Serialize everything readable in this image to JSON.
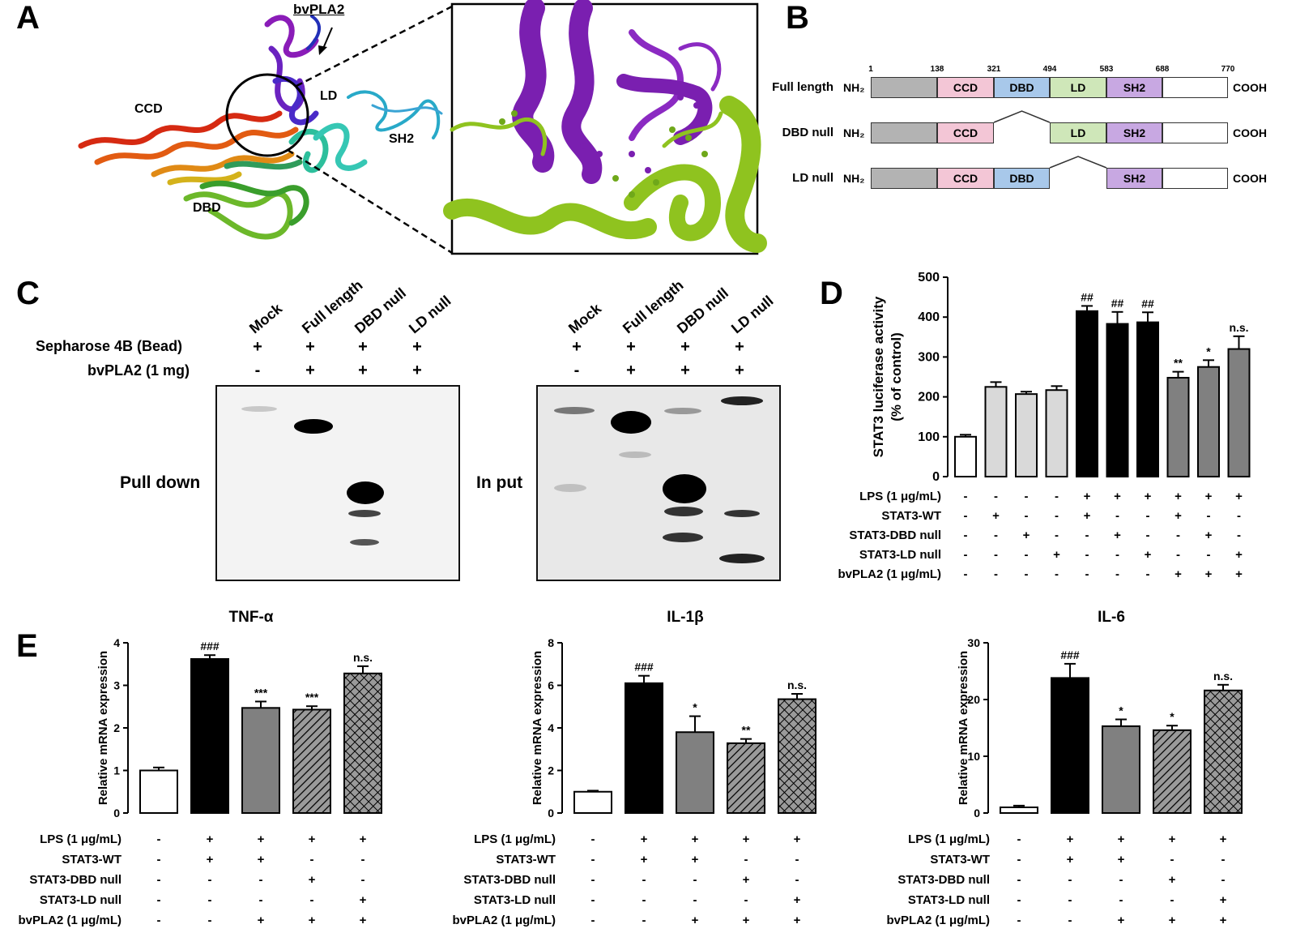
{
  "panels": {
    "a": "A",
    "b": "B",
    "c": "C",
    "d": "D",
    "e": "E"
  },
  "panel_a": {
    "labels": {
      "bvpla2": "bvPLA2",
      "ccd": "CCD",
      "ld": "LD",
      "sh2": "SH2",
      "dbd": "DBD"
    },
    "colors": {
      "helix_purple": "#7a1fb0",
      "helix_green": "#8fc31f",
      "background": "#ffffff"
    }
  },
  "panel_b": {
    "positions": [
      "1",
      "138",
      "321",
      "494",
      "583",
      "688",
      "770"
    ],
    "nh2": "NH₂",
    "cooh": "COOH",
    "constructs": [
      {
        "name": "Full length",
        "domains": [
          "CCD",
          "DBD",
          "LD",
          "SH2"
        ]
      },
      {
        "name": "DBD null",
        "domains": [
          "CCD",
          "LD",
          "SH2"
        ]
      },
      {
        "name": "LD null",
        "domains": [
          "CCD",
          "DBD",
          "SH2"
        ]
      }
    ],
    "domain_colors": {
      "N": "#b3b3b3",
      "CCD": "#f3c6d6",
      "DBD": "#a8c8ea",
      "LD": "#cfe7b9",
      "SH2": "#c8a8e2",
      "C": "#ffffff"
    }
  },
  "panel_c": {
    "lanes": [
      "Mock",
      "Full length",
      "DBD null",
      "LD null"
    ],
    "row_labels": {
      "bead": "Sepharose 4B (Bead)",
      "bvpla2": "bvPLA2 (1 mg)"
    },
    "bead_signs": [
      "+",
      "+",
      "+",
      "+"
    ],
    "bvpla2_signs": [
      "-",
      "+",
      "+",
      "+"
    ],
    "blot_labels": {
      "pulldown": "Pull down",
      "input": "In put"
    }
  },
  "panel_d": {
    "chart_data": {
      "type": "bar",
      "ylabel": "STAT3 luciferase activity\n(% of control)",
      "ylim": [
        0,
        500
      ],
      "yticks": [
        "0",
        "100",
        "200",
        "300",
        "400",
        "500"
      ],
      "values": [
        100,
        225,
        207,
        217,
        415,
        383,
        387,
        248,
        275,
        320
      ],
      "errors": [
        5,
        12,
        6,
        10,
        13,
        30,
        25,
        15,
        17,
        32
      ],
      "bar_colors": [
        "#ffffff",
        "#d9d9d9",
        "#d9d9d9",
        "#d9d9d9",
        "#000000",
        "#000000",
        "#000000",
        "#808080",
        "#808080",
        "#808080"
      ],
      "annotations": [
        "",
        "",
        "",
        "",
        "##",
        "##",
        "##",
        "**",
        "*",
        "n.s."
      ],
      "treatments": [
        {
          "name": "LPS (1 μg/mL)",
          "signs": [
            "-",
            "-",
            "-",
            "-",
            "+",
            "+",
            "+",
            "+",
            "+",
            "+"
          ]
        },
        {
          "name": "STAT3-WT",
          "signs": [
            "-",
            "+",
            "-",
            "-",
            "+",
            "-",
            "-",
            "+",
            "-",
            "-"
          ]
        },
        {
          "name": "STAT3-DBD null",
          "signs": [
            "-",
            "-",
            "+",
            "-",
            "-",
            "+",
            "-",
            "-",
            "+",
            "-"
          ]
        },
        {
          "name": "STAT3-LD null",
          "signs": [
            "-",
            "-",
            "-",
            "+",
            "-",
            "-",
            "+",
            "-",
            "-",
            "+"
          ]
        },
        {
          "name": "bvPLA2 (1 μg/mL)",
          "signs": [
            "-",
            "-",
            "-",
            "-",
            "-",
            "-",
            "-",
            "+",
            "+",
            "+"
          ]
        }
      ]
    }
  },
  "chart_data": [
    {
      "type": "bar",
      "title": "TNF-α",
      "ylabel": "Relative mRNA expression",
      "ylim": [
        0,
        4
      ],
      "yticks": [
        "0",
        "1",
        "2",
        "3",
        "4"
      ],
      "values": [
        1.0,
        3.62,
        2.47,
        2.43,
        3.28
      ],
      "errors": [
        0.07,
        0.09,
        0.15,
        0.08,
        0.17
      ],
      "annotations": [
        "",
        "###",
        "***",
        "***",
        "n.s."
      ]
    },
    {
      "type": "bar",
      "title": "IL-1β",
      "ylabel": "Relative mRNA expression",
      "ylim": [
        0,
        8
      ],
      "yticks": [
        "0",
        "2",
        "4",
        "6",
        "8"
      ],
      "values": [
        1.0,
        6.1,
        3.8,
        3.28,
        5.35
      ],
      "errors": [
        0.05,
        0.35,
        0.75,
        0.2,
        0.25
      ],
      "annotations": [
        "",
        "###",
        "*",
        "**",
        "n.s."
      ]
    },
    {
      "type": "bar",
      "title": "IL-6",
      "ylabel": "Relative mRNA expression",
      "ylim": [
        0,
        30
      ],
      "yticks": [
        "0",
        "10",
        "20",
        "30"
      ],
      "values": [
        1.0,
        23.8,
        15.3,
        14.6,
        21.6
      ],
      "errors": [
        0.3,
        2.5,
        1.2,
        0.8,
        1.0
      ],
      "annotations": [
        "",
        "###",
        "*",
        "*",
        "n.s."
      ]
    }
  ],
  "panel_e": {
    "bar_fills": [
      "white",
      "black",
      "gray",
      "hatch",
      "crosshatch"
    ],
    "treatments": [
      {
        "name": "LPS (1 μg/mL)",
        "signs": [
          "-",
          "+",
          "+",
          "+",
          "+"
        ]
      },
      {
        "name": "STAT3-WT",
        "signs": [
          "-",
          "+",
          "+",
          "-",
          "-"
        ]
      },
      {
        "name": "STAT3-DBD null",
        "signs": [
          "-",
          "-",
          "-",
          "+",
          "-"
        ]
      },
      {
        "name": "STAT3-LD null",
        "signs": [
          "-",
          "-",
          "-",
          "-",
          "+"
        ]
      },
      {
        "name": "bvPLA2 (1 μg/mL)",
        "signs": [
          "-",
          "-",
          "+",
          "+",
          "+"
        ]
      }
    ]
  }
}
